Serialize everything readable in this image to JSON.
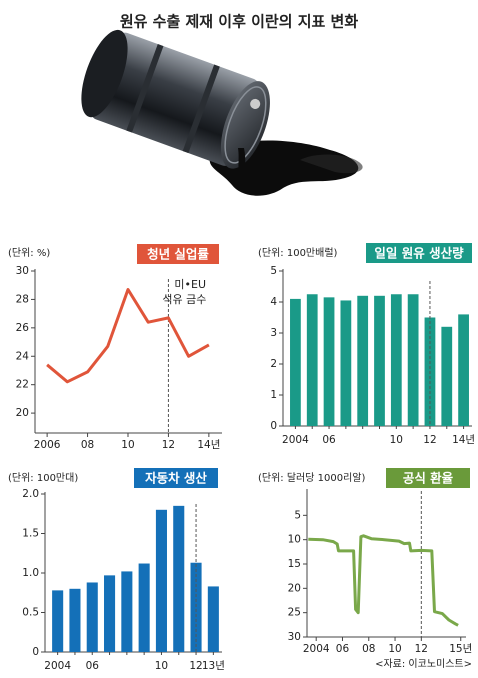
{
  "title": "원유 수출 제재 이후 이란의 지표 변화",
  "source": "<자료: 이코노미스트>",
  "chart_data": [
    {
      "type": "line",
      "title": "청년 실업률",
      "unit": "(단위: %)",
      "annotation": [
        "미•EU",
        "석유 금수"
      ],
      "vline": 2012,
      "color": "#e0553a",
      "title_color": "#e0553a",
      "x": [
        2006,
        2007,
        2008,
        2009,
        2010,
        2011,
        2012,
        2013,
        2014
      ],
      "values": [
        23.4,
        22.2,
        22.9,
        24.7,
        28.7,
        26.4,
        26.7,
        24.0,
        24.8
      ],
      "xlim": [
        2005.4,
        2014.65
      ],
      "xticks": [
        2006,
        {
          "value": 2008,
          "label": "08"
        },
        {
          "value": 2010,
          "label": "10"
        },
        {
          "value": 2012,
          "label": "12"
        },
        {
          "value": 2014,
          "label": "14년"
        }
      ],
      "ylim": [
        18.6,
        30
      ],
      "yticks": [
        20,
        22,
        24,
        26,
        28,
        30
      ]
    },
    {
      "type": "bar",
      "title": "일일 원유 생산량",
      "unit": "(단위: 100만배럴)",
      "vline_index": 8,
      "color": "#1a9a88",
      "title_color": "#1a9a88",
      "categories": [
        "2004",
        null,
        "06",
        null,
        null,
        null,
        "10",
        null,
        "12",
        null,
        "14년"
      ],
      "values": [
        4.1,
        4.25,
        4.15,
        4.05,
        4.2,
        4.2,
        4.25,
        4.25,
        3.5,
        3.2,
        3.6
      ],
      "ylim": [
        0,
        5
      ],
      "yticks": [
        0,
        1,
        2,
        3,
        4,
        5
      ]
    },
    {
      "type": "bar",
      "title": "자동차 생산",
      "unit": "(단위: 100만대)",
      "vline_index": 8,
      "color": "#1470b8",
      "title_color": "#1470b8",
      "categories": [
        "2004",
        null,
        "06",
        null,
        null,
        null,
        "10",
        null,
        "12",
        "13년"
      ],
      "values": [
        0.78,
        0.8,
        0.88,
        0.97,
        1.02,
        1.12,
        1.8,
        1.85,
        1.13,
        0.83
      ],
      "ylim": [
        0,
        2
      ],
      "yticks": [
        0,
        0.5,
        {
          "value": 1,
          "label": "1.0"
        },
        1.5,
        {
          "value": 2,
          "label": "2.0"
        }
      ]
    },
    {
      "type": "line",
      "title": "공식 환율",
      "unit": "(단위: 달러당 1000리알)",
      "vline": 2012,
      "color": "#7aa84a",
      "title_color": "#6a9a3a",
      "x": [
        2003.4,
        2004.5,
        2005.3,
        2005.6,
        2005.7,
        2006.85,
        2007.0,
        2007.2,
        2007.4,
        2007.6,
        2008.2,
        2009.2,
        2010.3,
        2010.7,
        2011.1,
        2011.2,
        2012.0,
        2012.8,
        2013.0,
        2013.6,
        2014.1,
        2014.6,
        2014.8
      ],
      "values": [
        9.9,
        10.0,
        10.4,
        10.9,
        12.3,
        12.3,
        24.3,
        25.0,
        9.4,
        9.2,
        9.8,
        10.0,
        10.3,
        10.8,
        10.7,
        12.3,
        12.2,
        12.3,
        24.8,
        25.2,
        26.5,
        27.3,
        27.6
      ],
      "xlim": [
        2003.3,
        2015.4
      ],
      "xticks": [
        2004,
        {
          "value": 2006,
          "label": "06"
        },
        {
          "value": 2008,
          "label": "08"
        },
        {
          "value": 2010,
          "label": "10"
        },
        {
          "value": 2012,
          "label": "12"
        },
        {
          "value": 2015,
          "label": "15년"
        }
      ],
      "ylim": [
        30,
        0
      ],
      "yticks": [
        5,
        10,
        15,
        20,
        25,
        30
      ]
    }
  ]
}
